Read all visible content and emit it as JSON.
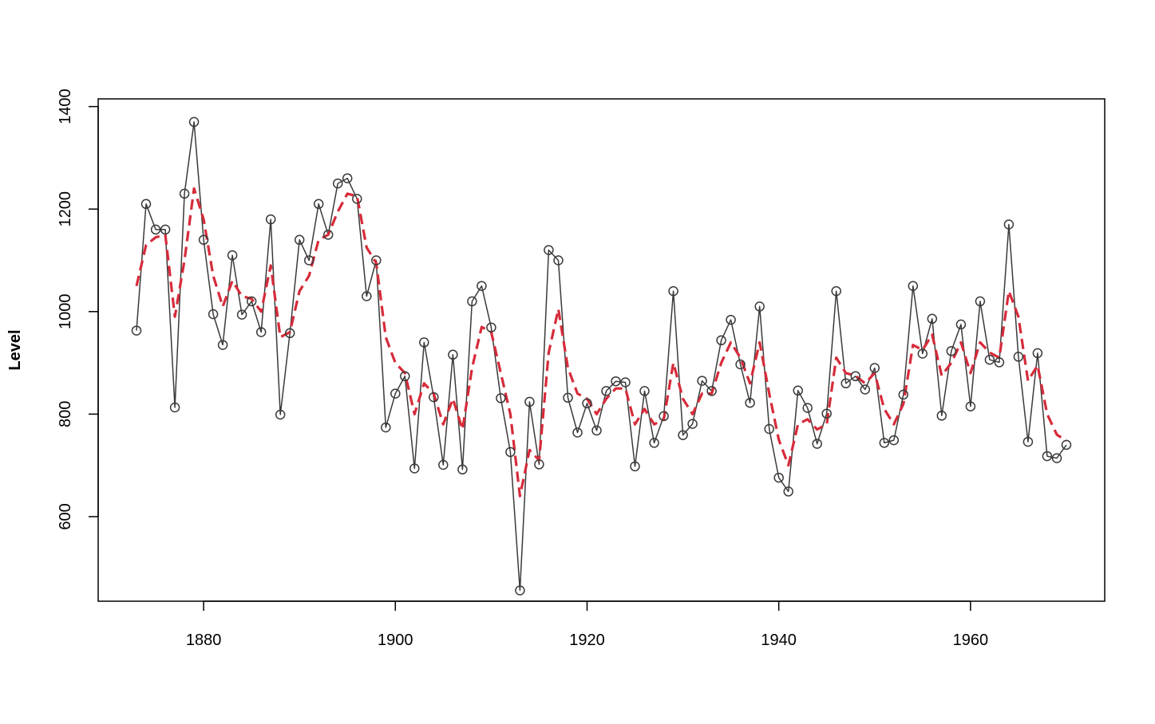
{
  "chart_data": {
    "type": "line",
    "title": "",
    "xlabel": "",
    "ylabel": "Level",
    "xlim": [
      1869,
      1974
    ],
    "ylim": [
      435,
      1415
    ],
    "xticks": [
      1880,
      1900,
      1920,
      1940,
      1960
    ],
    "yticks": [
      600,
      800,
      1000,
      1200,
      1400
    ],
    "grid": false,
    "legend": "none",
    "x": [
      1873,
      1874,
      1875,
      1876,
      1877,
      1878,
      1879,
      1880,
      1881,
      1882,
      1883,
      1884,
      1885,
      1886,
      1887,
      1888,
      1889,
      1890,
      1891,
      1892,
      1893,
      1894,
      1895,
      1896,
      1897,
      1898,
      1899,
      1900,
      1901,
      1902,
      1903,
      1904,
      1905,
      1906,
      1907,
      1908,
      1909,
      1910,
      1911,
      1912,
      1913,
      1914,
      1915,
      1916,
      1917,
      1918,
      1919,
      1920,
      1921,
      1922,
      1923,
      1924,
      1925,
      1926,
      1927,
      1928,
      1929,
      1930,
      1931,
      1932,
      1933,
      1934,
      1935,
      1936,
      1937,
      1938,
      1939,
      1940,
      1941,
      1942,
      1943,
      1944,
      1945,
      1946,
      1947,
      1948,
      1949,
      1950,
      1951,
      1952,
      1953,
      1954,
      1955,
      1956,
      1957,
      1958,
      1959,
      1960,
      1961,
      1962,
      1963,
      1964,
      1965,
      1966,
      1967,
      1968,
      1969,
      1970
    ],
    "series": [
      {
        "style": "observed",
        "color": "#3a3a3a",
        "marker": "open-circle",
        "values": [
          963,
          1210,
          1160,
          1160,
          813,
          1230,
          1370,
          1140,
          995,
          935,
          1110,
          994,
          1020,
          960,
          1180,
          799,
          958,
          1140,
          1100,
          1210,
          1150,
          1250,
          1260,
          1220,
          1030,
          1100,
          774,
          840,
          874,
          694,
          940,
          833,
          701,
          916,
          692,
          1020,
          1050,
          969,
          831,
          726,
          456,
          824,
          702,
          1120,
          1100,
          832,
          764,
          821,
          768,
          845,
          864,
          862,
          698,
          845,
          744,
          796,
          1040,
          759,
          781,
          865,
          845,
          944,
          984,
          897,
          822,
          1010,
          771,
          676,
          649,
          846,
          812,
          742,
          801,
          1040,
          860,
          874,
          848,
          890,
          744,
          749,
          838,
          1050,
          918,
          986,
          797,
          923,
          975,
          815,
          1020,
          906,
          901,
          1170,
          912,
          746,
          919,
          718,
          714,
          740
        ]
      },
      {
        "style": "smoothed",
        "color": "#d62b3a",
        "line": "dashed",
        "values": [
          1050,
          1130,
          1145,
          1150,
          990,
          1100,
          1240,
          1180,
          1070,
          1010,
          1060,
          1030,
          1025,
          1000,
          1090,
          950,
          960,
          1040,
          1070,
          1140,
          1150,
          1195,
          1230,
          1225,
          1125,
          1095,
          950,
          900,
          880,
          800,
          860,
          840,
          780,
          830,
          770,
          890,
          970,
          960,
          880,
          800,
          640,
          730,
          710,
          920,
          1005,
          890,
          840,
          830,
          800,
          830,
          850,
          850,
          780,
          810,
          780,
          790,
          900,
          830,
          800,
          840,
          840,
          900,
          940,
          910,
          860,
          940,
          840,
          750,
          700,
          780,
          790,
          770,
          780,
          910,
          880,
          875,
          860,
          880,
          810,
          780,
          820,
          935,
          925,
          955,
          875,
          900,
          940,
          880,
          940,
          920,
          910,
          1040,
          990,
          865,
          895,
          800,
          760,
          748
        ]
      }
    ]
  }
}
